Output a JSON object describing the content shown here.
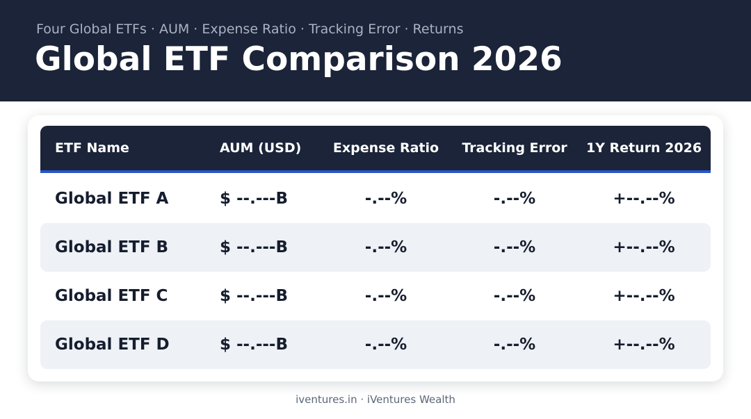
{
  "header": {
    "subtitle": "Four Global ETFs · AUM · Expense Ratio · Tracking Error · Returns",
    "title": "Global ETF Comparison 2026"
  },
  "table": {
    "columns": [
      "ETF Name",
      "AUM (USD)",
      "Expense Ratio",
      "Tracking Error",
      "1Y Return 2026"
    ],
    "rows": [
      {
        "name": "Global ETF A",
        "aum": "$ --.---B",
        "expense": "-.--%",
        "tracking": "-.--%",
        "return": "+--.--%"
      },
      {
        "name": "Global ETF B",
        "aum": "$ --.---B",
        "expense": "-.--%",
        "tracking": "-.--%",
        "return": "+--.--%"
      },
      {
        "name": "Global ETF C",
        "aum": "$ --.---B",
        "expense": "-.--%",
        "tracking": "-.--%",
        "return": "+--.--%"
      },
      {
        "name": "Global ETF D",
        "aum": "$ --.---B",
        "expense": "-.--%",
        "tracking": "-.--%",
        "return": "+--.--%"
      }
    ]
  },
  "footer": {
    "text": "iventures.in · iVentures Wealth"
  },
  "colors": {
    "header_bg": "#1b2438",
    "accent": "#2a55c8",
    "row_shade": "#eef1f5"
  }
}
